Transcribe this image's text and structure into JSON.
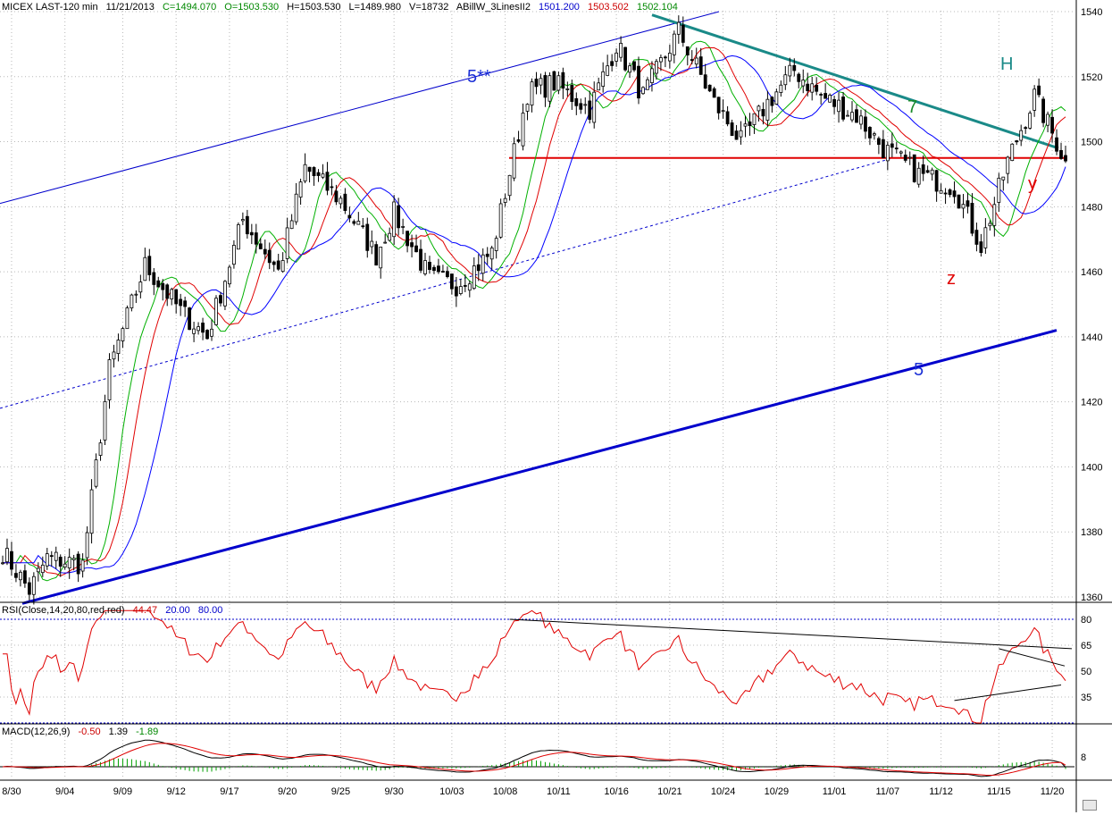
{
  "header": {
    "symbol": "MICEX LAST-120 min",
    "date": "11/21/2013",
    "close": "C=1494.070",
    "open": "O=1503.530",
    "high": "H=1503.530",
    "low": "L=1489.980",
    "volume": "V=18732",
    "indicator": "ABillW_3LinesII2",
    "ind_blue": "1501.200",
    "ind_red": "1503.502",
    "ind_green": "1502.104"
  },
  "rsi_header": {
    "label": "RSI(Close,14,20,80,red,red)",
    "value": "44.47",
    "low": "20.00",
    "high": "80.00"
  },
  "macd_header": {
    "label": "MACD(12,26,9)",
    "macd": "-0.50",
    "signal": "1.39",
    "hist": "-1.89"
  },
  "annotations": {
    "wave_5_star": "5**",
    "wave_5": "5",
    "wave_7": "7",
    "label_h": "H",
    "label_y": "y",
    "label_z": "z"
  },
  "colors": {
    "up": "#ffffff",
    "down": "#000000",
    "wick": "#000000",
    "ma_green": "#00b000",
    "ma_red": "#e00000",
    "ma_blue": "#0000ff",
    "channel": "#0000cc",
    "trend_teal": "#1a8a88",
    "support": "#e00000",
    "rsi": "#e00000",
    "macd": "#000000",
    "signal": "#e00000",
    "hist": "#00a000",
    "grid": "#b8b8b8",
    "level_line": "#0000cc"
  },
  "chart_data": [
    {
      "type": "candlestick",
      "title": "MICEX LAST-120 min",
      "ylim": [
        1355,
        1545
      ],
      "y_ticks": [
        1360,
        1380,
        1400,
        1420,
        1440,
        1460,
        1480,
        1500,
        1520,
        1540
      ],
      "x_tick_labels": [
        "8/30",
        "9/04",
        "9/09",
        "9/12",
        "9/17",
        "9/20",
        "9/25",
        "9/30",
        "10/03",
        "10/08",
        "10/11",
        "10/16",
        "10/21",
        "10/24",
        "10/29",
        "11/01",
        "11/07",
        "11/12",
        "11/15",
        "11/20"
      ],
      "bar_count": 240,
      "anchors_index": [
        0,
        6,
        10,
        18,
        24,
        32,
        40,
        46,
        54,
        62,
        68,
        76,
        84,
        88,
        96,
        102,
        110,
        118,
        124,
        132,
        138,
        144,
        152,
        160,
        166,
        172,
        178,
        184,
        192,
        198,
        206,
        214,
        220,
        226,
        232,
        239
      ],
      "anchors_close": [
        1374,
        1362,
        1372,
        1370,
        1430,
        1462,
        1448,
        1440,
        1476,
        1460,
        1492,
        1482,
        1465,
        1478,
        1458,
        1456,
        1466,
        1515,
        1518,
        1510,
        1530,
        1514,
        1534,
        1512,
        1500,
        1512,
        1522,
        1514,
        1508,
        1498,
        1490,
        1486,
        1468,
        1494,
        1514,
        1494
      ],
      "support_level": 1495,
      "last_close": 1494.07
    },
    {
      "type": "line",
      "title": "RSI(Close,14,20,80,red,red)",
      "ylim": [
        20,
        85
      ],
      "y_ticks": [
        35,
        50,
        65,
        80
      ],
      "levels": [
        20,
        80
      ],
      "last_value": 44.47
    },
    {
      "type": "bar",
      "title": "MACD(12,26,9)",
      "y_ticks": [
        8
      ],
      "macd_last": -0.5,
      "signal_last": 1.39,
      "hist_last": -1.89
    }
  ]
}
